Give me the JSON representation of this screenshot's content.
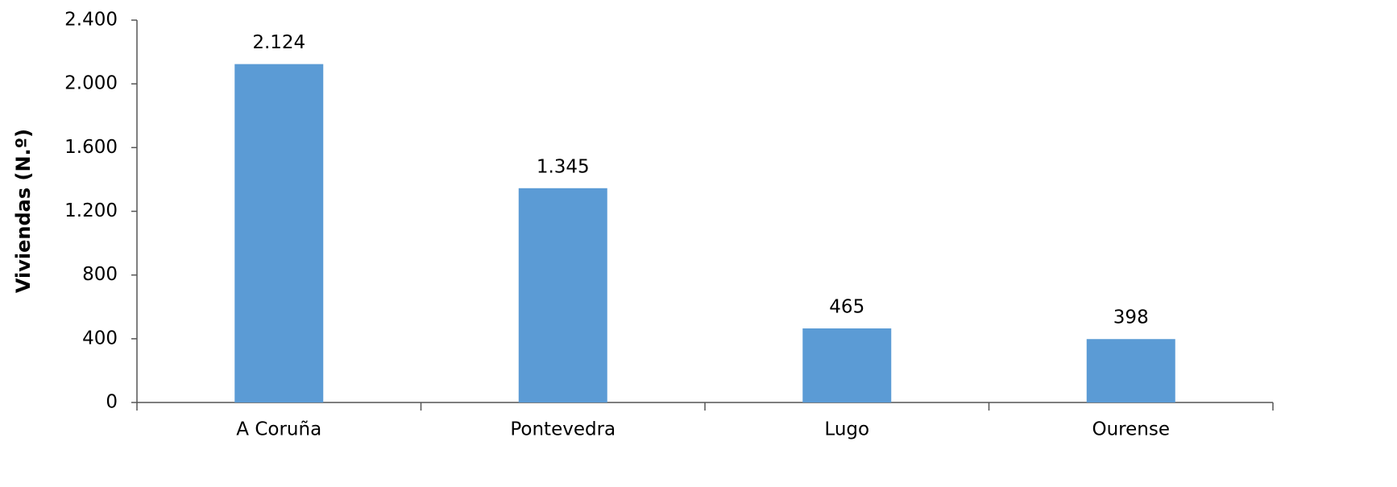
{
  "chart_data": {
    "type": "bar",
    "y_label": "Viviendas (N.º)",
    "categories": [
      "A Coruña",
      "Pontevedra",
      "Lugo",
      "Ourense"
    ],
    "values": [
      2124,
      1345,
      465,
      398
    ],
    "value_labels": [
      "2.124",
      "1.345",
      "465",
      "398"
    ],
    "color": "#5b9bd5",
    "ylim": [
      0,
      2400
    ],
    "yticks": [
      0,
      400,
      800,
      {
        "value": 1200,
        "label": "1.200"
      },
      {
        "value": 1600,
        "label": "1.600"
      },
      {
        "value": 2000,
        "label": "2.000"
      },
      {
        "value": 2400,
        "label": "2.400"
      }
    ],
    "grid": false
  }
}
